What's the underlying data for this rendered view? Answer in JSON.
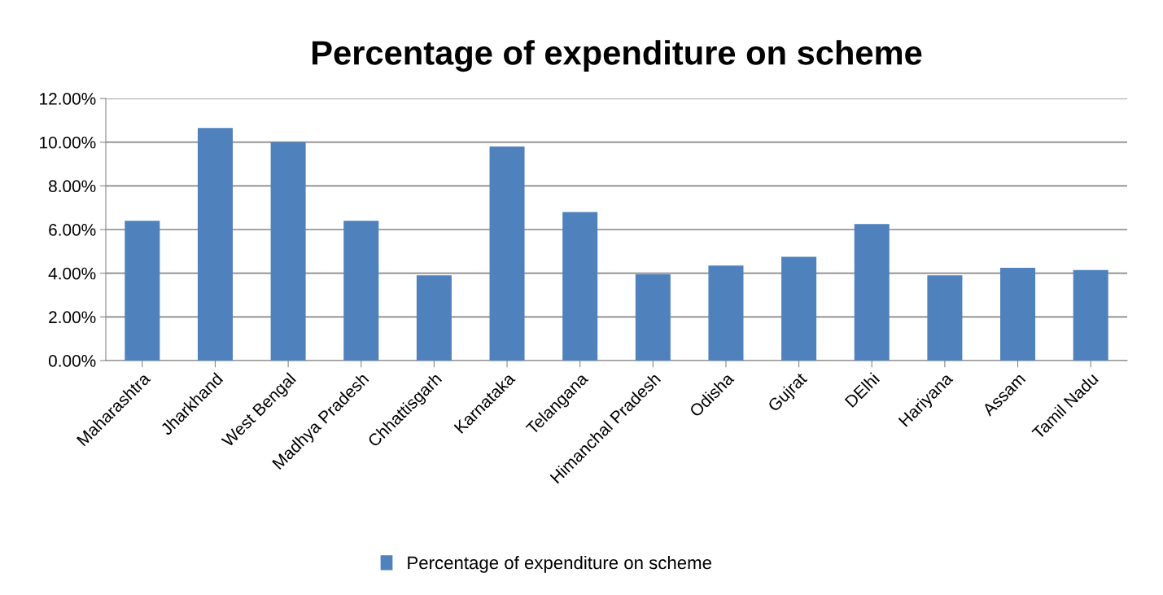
{
  "chart_data": {
    "type": "bar",
    "title": "Percentage of expenditure on scheme",
    "categories": [
      "Maharashtra",
      "Jharkhand",
      "West Bengal",
      "Madhya Pradesh",
      "Chhattisgarh",
      "Karnataka",
      "Telangana",
      "Himanchal Pradesh",
      "Odisha",
      "Gujrat",
      "DElhi",
      "Hariyana",
      "Assam",
      "Tamil Nadu"
    ],
    "series": [
      {
        "name": "Percentage of expenditure on scheme",
        "color": "#4f81bd",
        "values": [
          6.4,
          10.65,
          10.0,
          6.4,
          3.9,
          9.8,
          6.8,
          3.95,
          4.35,
          4.75,
          6.25,
          3.9,
          4.25,
          4.15
        ]
      }
    ],
    "ylim": [
      0,
      12
    ],
    "yticks": [
      {
        "value": 0,
        "label": "0.00%"
      },
      {
        "value": 2,
        "label": "2.00%"
      },
      {
        "value": 4,
        "label": "4.00%"
      },
      {
        "value": 6,
        "label": "6.00%"
      },
      {
        "value": 8,
        "label": "8.00%"
      },
      {
        "value": 10,
        "label": "10.00%"
      },
      {
        "value": 12,
        "label": "12.00%"
      }
    ],
    "grid": "y",
    "legend": "bottom"
  }
}
